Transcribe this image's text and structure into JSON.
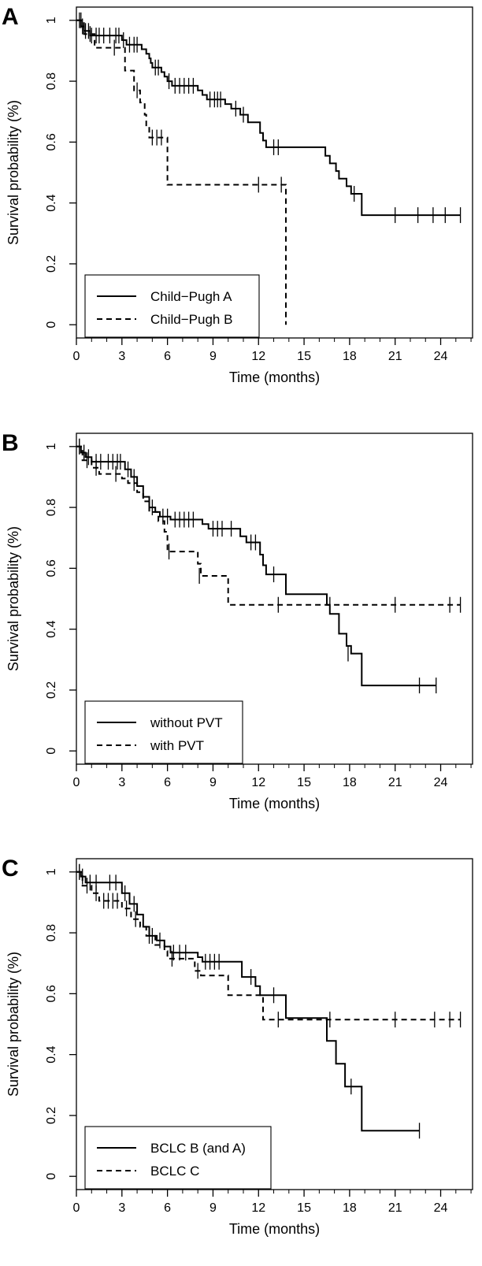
{
  "chart_data": [
    {
      "type": "line",
      "panel_label": "A",
      "xlabel": "Time (months)",
      "ylabel": "Survival probability (%)",
      "xlim": [
        0,
        26.1
      ],
      "ylim": [
        0,
        1
      ],
      "xticks": [
        0,
        3,
        6,
        9,
        12,
        15,
        18,
        21,
        24
      ],
      "yticks": [
        0,
        0.2,
        0.4,
        0.6,
        0.8,
        1
      ],
      "grid": false,
      "legend_position": "bottom-left",
      "series": [
        {
          "name": "Child−Pugh A",
          "dash": "solid",
          "steps": [
            [
              0,
              1
            ],
            [
              0.3,
              0.98
            ],
            [
              0.5,
              0.965
            ],
            [
              0.9,
              0.95
            ],
            [
              3.0,
              0.935
            ],
            [
              3.3,
              0.92
            ],
            [
              4.3,
              0.905
            ],
            [
              4.6,
              0.89
            ],
            [
              4.8,
              0.875
            ],
            [
              4.9,
              0.86
            ],
            [
              5.0,
              0.845
            ],
            [
              5.6,
              0.83
            ],
            [
              5.8,
              0.815
            ],
            [
              6.0,
              0.8
            ],
            [
              6.3,
              0.785
            ],
            [
              8.0,
              0.77
            ],
            [
              8.3,
              0.755
            ],
            [
              8.6,
              0.74
            ],
            [
              9.8,
              0.725
            ],
            [
              10.2,
              0.71
            ],
            [
              10.8,
              0.69
            ],
            [
              11.3,
              0.665
            ],
            [
              12.1,
              0.63
            ],
            [
              12.3,
              0.605
            ],
            [
              12.5,
              0.583
            ],
            [
              16.4,
              0.555
            ],
            [
              16.7,
              0.53
            ],
            [
              17.1,
              0.505
            ],
            [
              17.3,
              0.48
            ],
            [
              17.8,
              0.455
            ],
            [
              18.1,
              0.43
            ],
            [
              18.8,
              0.36
            ],
            [
              25.3,
              0.36
            ]
          ],
          "censored": [
            [
              0.2,
              1
            ],
            [
              0.4,
              0.98
            ],
            [
              0.6,
              0.965
            ],
            [
              0.8,
              0.965
            ],
            [
              1.0,
              0.95
            ],
            [
              1.3,
              0.95
            ],
            [
              1.5,
              0.95
            ],
            [
              1.8,
              0.95
            ],
            [
              2.2,
              0.95
            ],
            [
              2.6,
              0.95
            ],
            [
              2.8,
              0.95
            ],
            [
              3.1,
              0.935
            ],
            [
              3.5,
              0.92
            ],
            [
              3.8,
              0.92
            ],
            [
              4.0,
              0.92
            ],
            [
              5.2,
              0.845
            ],
            [
              5.4,
              0.845
            ],
            [
              6.1,
              0.8
            ],
            [
              6.5,
              0.785
            ],
            [
              6.8,
              0.785
            ],
            [
              7.1,
              0.785
            ],
            [
              7.4,
              0.785
            ],
            [
              7.7,
              0.785
            ],
            [
              8.8,
              0.74
            ],
            [
              9.1,
              0.74
            ],
            [
              9.3,
              0.74
            ],
            [
              9.5,
              0.74
            ],
            [
              10.5,
              0.71
            ],
            [
              11.0,
              0.69
            ],
            [
              13.0,
              0.583
            ],
            [
              13.3,
              0.583
            ],
            [
              18.3,
              0.43
            ],
            [
              21.0,
              0.36
            ],
            [
              22.5,
              0.36
            ],
            [
              23.5,
              0.36
            ],
            [
              24.3,
              0.36
            ],
            [
              25.3,
              0.36
            ]
          ]
        },
        {
          "name": "Child−Pugh B",
          "dash": "dashed",
          "steps": [
            [
              0,
              1
            ],
            [
              0.5,
              0.955
            ],
            [
              1.2,
              0.91
            ],
            [
              3.2,
              0.835
            ],
            [
              3.8,
              0.77
            ],
            [
              4.2,
              0.73
            ],
            [
              4.5,
              0.69
            ],
            [
              4.6,
              0.655
            ],
            [
              4.8,
              0.615
            ],
            [
              6.0,
              0.46
            ],
            [
              13.8,
              0.46
            ],
            [
              13.8,
              0
            ]
          ],
          "censored": [
            [
              0.3,
              1
            ],
            [
              0.9,
              0.955
            ],
            [
              2.5,
              0.91
            ],
            [
              4.0,
              0.77
            ],
            [
              5.0,
              0.615
            ],
            [
              5.3,
              0.615
            ],
            [
              5.6,
              0.615
            ],
            [
              12.0,
              0.46
            ],
            [
              13.5,
              0.46
            ]
          ]
        }
      ]
    },
    {
      "type": "line",
      "panel_label": "B",
      "xlabel": "Time (months)",
      "ylabel": "Survival probability (%)",
      "xlim": [
        0,
        26.1
      ],
      "ylim": [
        0,
        1
      ],
      "xticks": [
        0,
        3,
        6,
        9,
        12,
        15,
        18,
        21,
        24
      ],
      "yticks": [
        0,
        0.2,
        0.4,
        0.6,
        0.8,
        1
      ],
      "grid": false,
      "legend_position": "bottom-left",
      "series": [
        {
          "name": "without PVT",
          "dash": "solid",
          "steps": [
            [
              0,
              1
            ],
            [
              0.3,
              0.98
            ],
            [
              0.6,
              0.965
            ],
            [
              1.0,
              0.95
            ],
            [
              3.2,
              0.925
            ],
            [
              3.6,
              0.9
            ],
            [
              4.0,
              0.87
            ],
            [
              4.4,
              0.835
            ],
            [
              4.8,
              0.8
            ],
            [
              5.2,
              0.785
            ],
            [
              5.5,
              0.77
            ],
            [
              6.2,
              0.76
            ],
            [
              8.3,
              0.745
            ],
            [
              8.7,
              0.73
            ],
            [
              10.8,
              0.705
            ],
            [
              11.2,
              0.685
            ],
            [
              12.1,
              0.645
            ],
            [
              12.3,
              0.61
            ],
            [
              12.5,
              0.58
            ],
            [
              13.8,
              0.515
            ],
            [
              16.5,
              0.48
            ],
            [
              16.7,
              0.45
            ],
            [
              17.3,
              0.385
            ],
            [
              17.8,
              0.345
            ],
            [
              18.1,
              0.32
            ],
            [
              18.8,
              0.215
            ],
            [
              23.7,
              0.215
            ]
          ],
          "censored": [
            [
              0.2,
              1
            ],
            [
              0.5,
              0.98
            ],
            [
              0.8,
              0.965
            ],
            [
              1.3,
              0.95
            ],
            [
              1.6,
              0.95
            ],
            [
              2.1,
              0.95
            ],
            [
              2.4,
              0.95
            ],
            [
              2.7,
              0.95
            ],
            [
              2.9,
              0.95
            ],
            [
              3.4,
              0.925
            ],
            [
              3.8,
              0.9
            ],
            [
              5.0,
              0.8
            ],
            [
              5.7,
              0.77
            ],
            [
              6.0,
              0.77
            ],
            [
              6.5,
              0.76
            ],
            [
              6.8,
              0.76
            ],
            [
              7.1,
              0.76
            ],
            [
              7.4,
              0.76
            ],
            [
              7.7,
              0.76
            ],
            [
              9.0,
              0.73
            ],
            [
              9.3,
              0.73
            ],
            [
              9.6,
              0.73
            ],
            [
              10.2,
              0.73
            ],
            [
              11.5,
              0.685
            ],
            [
              11.8,
              0.685
            ],
            [
              13.0,
              0.58
            ],
            [
              17.9,
              0.32
            ],
            [
              22.6,
              0.215
            ],
            [
              23.7,
              0.215
            ]
          ]
        },
        {
          "name": "with PVT",
          "dash": "dashed",
          "steps": [
            [
              0,
              1
            ],
            [
              0.4,
              0.955
            ],
            [
              1.0,
              0.93
            ],
            [
              1.5,
              0.91
            ],
            [
              3.0,
              0.895
            ],
            [
              3.4,
              0.88
            ],
            [
              4.0,
              0.85
            ],
            [
              4.4,
              0.82
            ],
            [
              4.8,
              0.785
            ],
            [
              5.4,
              0.755
            ],
            [
              5.8,
              0.72
            ],
            [
              6.0,
              0.655
            ],
            [
              8.0,
              0.615
            ],
            [
              8.2,
              0.575
            ],
            [
              10.0,
              0.48
            ],
            [
              25.3,
              0.48
            ]
          ],
          "censored": [
            [
              0.2,
              1
            ],
            [
              0.7,
              0.955
            ],
            [
              1.3,
              0.93
            ],
            [
              2.6,
              0.91
            ],
            [
              3.8,
              0.88
            ],
            [
              6.1,
              0.655
            ],
            [
              8.1,
              0.575
            ],
            [
              13.3,
              0.48
            ],
            [
              16.7,
              0.48
            ],
            [
              21.0,
              0.48
            ],
            [
              24.6,
              0.48
            ],
            [
              25.3,
              0.48
            ]
          ]
        }
      ]
    },
    {
      "type": "line",
      "panel_label": "C",
      "xlabel": "Time (months)",
      "ylabel": "Survival probability (%)",
      "xlim": [
        0,
        26.1
      ],
      "ylim": [
        0,
        1
      ],
      "xticks": [
        0,
        3,
        6,
        9,
        12,
        15,
        18,
        21,
        24
      ],
      "yticks": [
        0,
        0.2,
        0.4,
        0.6,
        0.8,
        1
      ],
      "grid": false,
      "legend_position": "bottom-left",
      "series": [
        {
          "name": "BCLC B (and A)",
          "dash": "solid",
          "steps": [
            [
              0,
              1
            ],
            [
              0.3,
              0.985
            ],
            [
              0.6,
              0.965
            ],
            [
              3.0,
              0.93
            ],
            [
              3.5,
              0.895
            ],
            [
              4.0,
              0.86
            ],
            [
              4.4,
              0.82
            ],
            [
              4.8,
              0.79
            ],
            [
              5.3,
              0.775
            ],
            [
              5.8,
              0.755
            ],
            [
              6.2,
              0.735
            ],
            [
              8.0,
              0.72
            ],
            [
              8.3,
              0.705
            ],
            [
              10.9,
              0.655
            ],
            [
              11.8,
              0.625
            ],
            [
              12.1,
              0.595
            ],
            [
              13.8,
              0.52
            ],
            [
              16.5,
              0.445
            ],
            [
              17.1,
              0.37
            ],
            [
              17.7,
              0.295
            ],
            [
              18.8,
              0.15
            ],
            [
              22.6,
              0.15
            ]
          ],
          "censored": [
            [
              0.2,
              1
            ],
            [
              0.4,
              0.985
            ],
            [
              0.9,
              0.965
            ],
            [
              1.3,
              0.965
            ],
            [
              2.2,
              0.965
            ],
            [
              2.6,
              0.965
            ],
            [
              3.2,
              0.93
            ],
            [
              3.8,
              0.895
            ],
            [
              5.0,
              0.79
            ],
            [
              5.5,
              0.775
            ],
            [
              6.4,
              0.735
            ],
            [
              6.8,
              0.735
            ],
            [
              7.2,
              0.735
            ],
            [
              8.5,
              0.705
            ],
            [
              8.8,
              0.705
            ],
            [
              9.1,
              0.705
            ],
            [
              9.4,
              0.705
            ],
            [
              11.5,
              0.655
            ],
            [
              13.0,
              0.595
            ],
            [
              18.1,
              0.295
            ],
            [
              22.6,
              0.15
            ]
          ]
        },
        {
          "name": "BCLC C",
          "dash": "dashed",
          "steps": [
            [
              0,
              1
            ],
            [
              0.4,
              0.955
            ],
            [
              1.0,
              0.93
            ],
            [
              1.5,
              0.905
            ],
            [
              3.0,
              0.88
            ],
            [
              3.6,
              0.845
            ],
            [
              4.2,
              0.82
            ],
            [
              4.6,
              0.79
            ],
            [
              5.2,
              0.76
            ],
            [
              5.8,
              0.74
            ],
            [
              6.0,
              0.715
            ],
            [
              7.8,
              0.675
            ],
            [
              8.2,
              0.66
            ],
            [
              10.0,
              0.595
            ],
            [
              12.3,
              0.515
            ],
            [
              25.3,
              0.515
            ]
          ],
          "censored": [
            [
              0.2,
              1
            ],
            [
              0.7,
              0.955
            ],
            [
              1.3,
              0.93
            ],
            [
              1.8,
              0.905
            ],
            [
              2.1,
              0.905
            ],
            [
              2.4,
              0.905
            ],
            [
              2.7,
              0.905
            ],
            [
              3.3,
              0.88
            ],
            [
              3.9,
              0.845
            ],
            [
              4.8,
              0.79
            ],
            [
              6.3,
              0.715
            ],
            [
              8.0,
              0.675
            ],
            [
              13.3,
              0.515
            ],
            [
              16.7,
              0.515
            ],
            [
              21.0,
              0.515
            ],
            [
              23.6,
              0.515
            ],
            [
              24.6,
              0.515
            ],
            [
              25.3,
              0.515
            ]
          ]
        }
      ]
    }
  ]
}
